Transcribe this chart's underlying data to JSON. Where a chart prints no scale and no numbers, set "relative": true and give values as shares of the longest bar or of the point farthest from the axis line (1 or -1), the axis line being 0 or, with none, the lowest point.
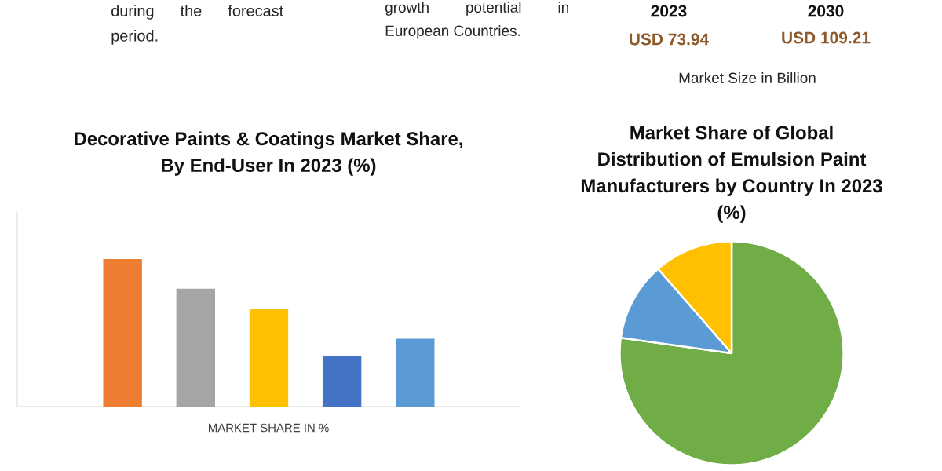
{
  "chart_data": [
    {
      "type": "other",
      "annotations": [
        "during the forecast period.",
        "growth potential in European Countries.",
        "2023",
        "2030",
        "USD 73.94",
        "USD 109.21",
        "Market Size in Billion"
      ]
    },
    {
      "type": "bar",
      "title": "Decorative Paints & Coatings Market Share, By End-User In 2023 (%)",
      "xlabel": "MARKET SHARE IN %",
      "categories": [
        null,
        null,
        null,
        null,
        null
      ],
      "values": [
        1,
        0.8,
        0.66,
        0.34,
        0.46
      ],
      "colors": [
        "#ed7d31",
        "#a5a5a5",
        "#ffc000",
        "#4472c4",
        "#5b9bd5"
      ],
      "relative": true
    },
    {
      "type": "pie",
      "title": "Market Share of Global Distribution of Emulsion Paint Manufacturers by Country In 2023 (%)",
      "categories": [
        null,
        null,
        null
      ],
      "values": [
        77.2,
        11.4,
        11.4
      ],
      "colors": [
        "#70ad47",
        "#5b9bd5",
        "#ffc000"
      ]
    }
  ]
}
